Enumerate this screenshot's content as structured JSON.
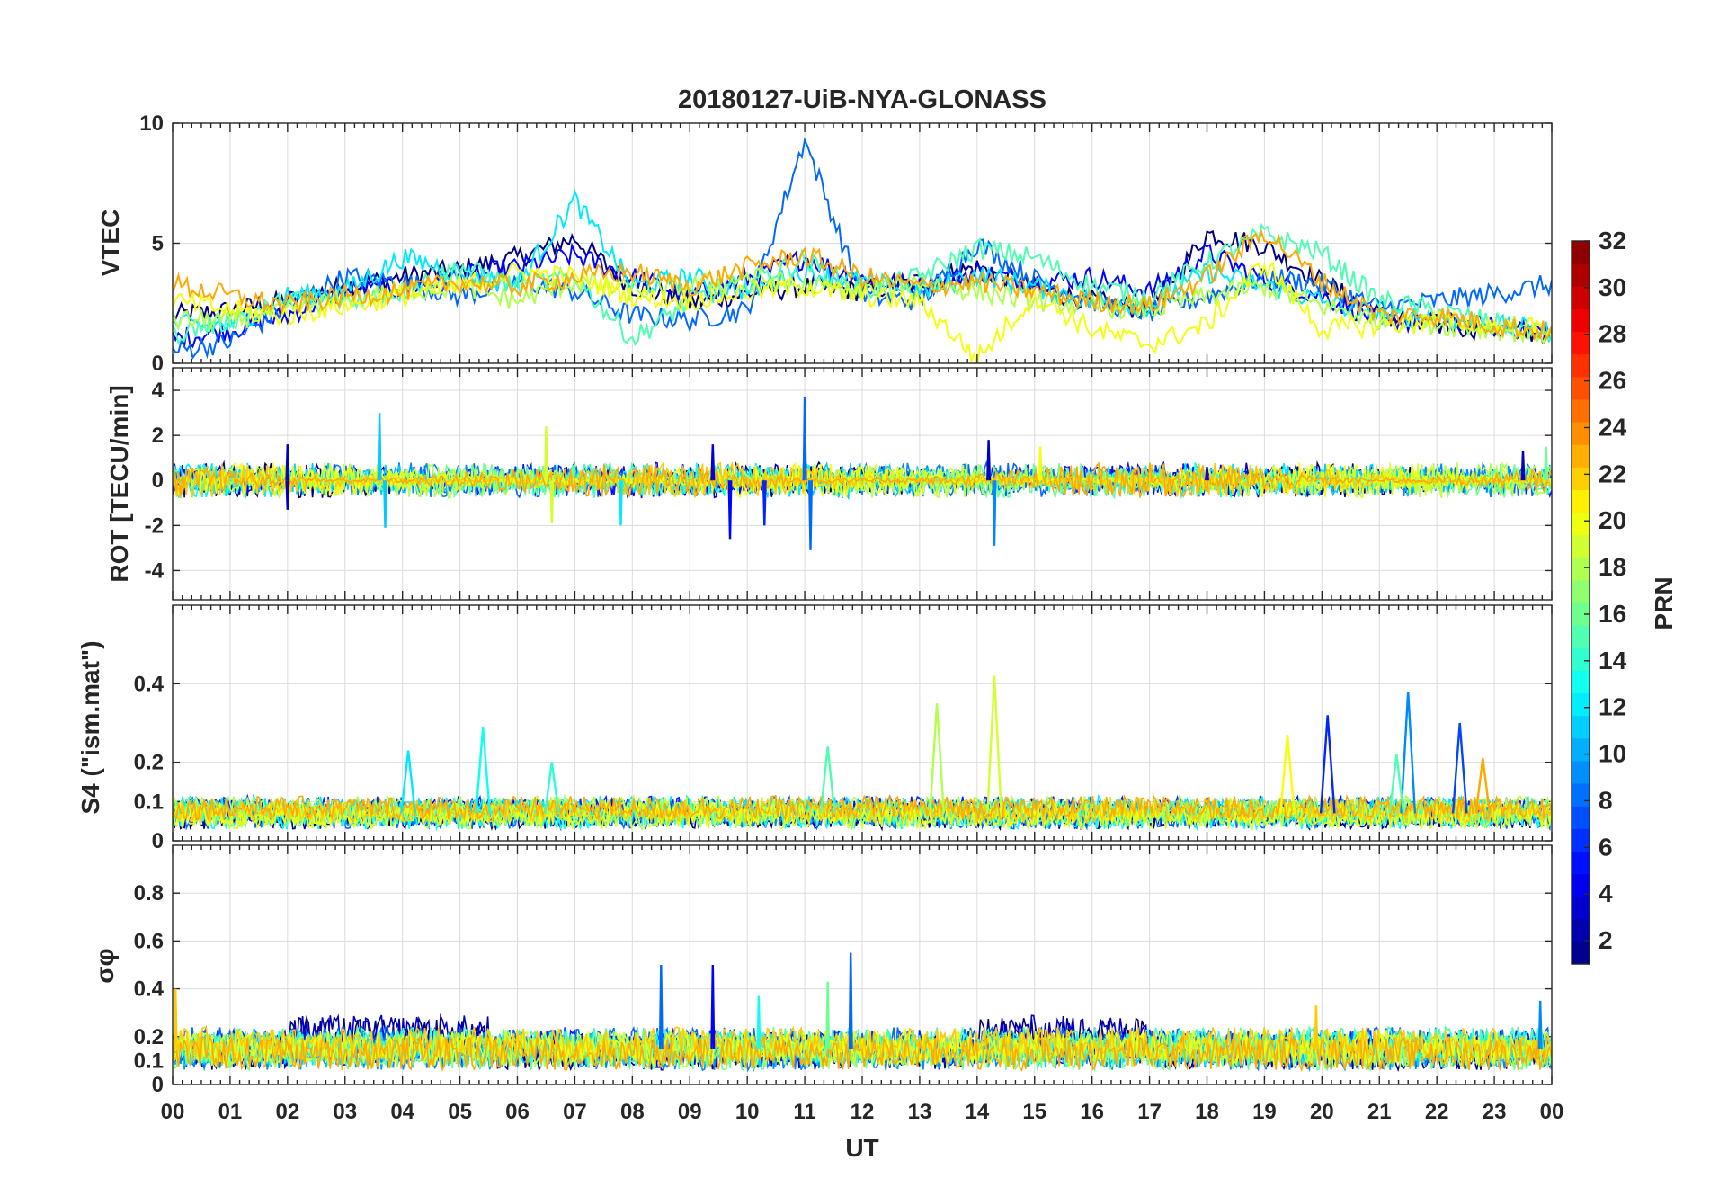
{
  "chart_data": {
    "type": "line",
    "title": "20180127-UiB-NYA-GLONASS",
    "xlabel": "UT",
    "x_tick_labels": [
      "00",
      "01",
      "02",
      "03",
      "04",
      "05",
      "06",
      "07",
      "08",
      "09",
      "10",
      "11",
      "12",
      "13",
      "14",
      "15",
      "16",
      "17",
      "18",
      "19",
      "20",
      "21",
      "22",
      "23",
      "00"
    ],
    "xlim": [
      0,
      24
    ],
    "colorbar": {
      "label": "PRN",
      "range": [
        1,
        32
      ],
      "tick_values": [
        2,
        4,
        6,
        8,
        10,
        12,
        14,
        16,
        18,
        20,
        22,
        24,
        26,
        28,
        30,
        32
      ],
      "tick_labels": [
        "2",
        "4",
        "6",
        "8",
        "10",
        "12",
        "14",
        "16",
        "18",
        "20",
        "22",
        "24",
        "26",
        "28",
        "30",
        "32"
      ]
    },
    "legend": "colorbar right",
    "panels": [
      {
        "key": "vtec",
        "ylabel": "VTEC",
        "ylim": [
          0,
          10
        ],
        "y_ticks": [
          0,
          5,
          10
        ],
        "y_tick_labels": [
          "0",
          "5",
          "10"
        ],
        "series_summary": "Per-PRN VTEC tracks of roughly 1-6 TECU, peaking near 9.3 TECU at about 11 UT",
        "series": [
          {
            "prn": 1,
            "x": [
              0,
              1,
              2,
              3,
              4,
              5,
              6,
              7,
              8,
              9,
              10,
              11,
              12,
              13,
              14,
              15,
              16,
              17,
              18,
              19,
              20,
              21,
              22,
              23,
              24
            ],
            "y": [
              2.0,
              2.2,
              2.6,
              3.2,
              3.6,
              3.9,
              4.4,
              5.2,
              3.2,
              2.5,
              2.9,
              3.2,
              3.0,
              3.4,
              4.0,
              3.1,
              2.6,
              2.2,
              5.4,
              4.9,
              3.4,
              2.0,
              1.6,
              1.4,
              1.2
            ]
          },
          {
            "prn": 5,
            "x": [
              0,
              1,
              2,
              3,
              4,
              5,
              6,
              7,
              8,
              9,
              10,
              11,
              12,
              13,
              14,
              15,
              16,
              17,
              18,
              19,
              20,
              21,
              22,
              23,
              24
            ],
            "y": [
              1.0,
              1.4,
              2.0,
              3.0,
              3.1,
              3.6,
              4.0,
              4.5,
              3.6,
              2.8,
              3.5,
              4.4,
              3.5,
              3.2,
              3.8,
              3.4,
              3.6,
              3.0,
              4.6,
              3.5,
              2.8,
              1.8,
              1.7,
              1.5,
              1.4
            ]
          },
          {
            "prn": 8,
            "x": [
              0,
              1,
              2,
              3,
              4,
              5,
              6,
              7,
              8,
              9,
              10,
              11,
              12,
              13,
              14,
              15,
              16,
              17,
              18,
              19,
              20,
              21,
              22,
              23,
              24
            ],
            "y": [
              0.5,
              0.9,
              2.4,
              3.6,
              3.4,
              2.8,
              3.4,
              3.0,
              2.0,
              1.8,
              2.2,
              9.3,
              2.8,
              2.6,
              5.0,
              3.5,
              2.6,
              2.1,
              2.8,
              3.6,
              3.3,
              2.3,
              2.6,
              2.9,
              3.3
            ]
          },
          {
            "prn": 12,
            "x": [
              0,
              1,
              2,
              3,
              4,
              5,
              6,
              7,
              8,
              9,
              10,
              11,
              12,
              13,
              14,
              15,
              16,
              17,
              18,
              19,
              20,
              21,
              22,
              23,
              24
            ],
            "y": [
              1.6,
              1.6,
              2.8,
              3.0,
              4.4,
              3.8,
              3.3,
              6.8,
              3.2,
              3.6,
              3.0,
              3.8,
              3.4,
              3.0,
              3.7,
              3.2,
              2.6,
              2.4,
              3.8,
              3.2,
              2.6,
              2.0,
              1.9,
              1.6,
              1.3
            ]
          },
          {
            "prn": 15,
            "x": [
              0,
              1,
              2,
              3,
              4,
              5,
              6,
              7,
              8,
              9,
              10,
              11,
              12,
              13,
              14,
              15,
              16,
              17,
              18,
              19,
              20,
              21,
              22,
              23,
              24
            ],
            "y": [
              1.2,
              1.8,
              2.6,
              2.6,
              3.0,
              4.0,
              3.2,
              3.6,
              1.0,
              2.6,
              3.4,
              4.3,
              3.0,
              3.6,
              4.8,
              4.4,
              3.2,
              2.8,
              4.2,
              5.4,
              4.6,
              2.6,
              2.2,
              1.7,
              1.2
            ]
          },
          {
            "prn": 18,
            "x": [
              0,
              1,
              2,
              3,
              4,
              5,
              6,
              7,
              8,
              9,
              10,
              11,
              12,
              13,
              14,
              15,
              16,
              17,
              18,
              19,
              20,
              21,
              22,
              23,
              24
            ],
            "y": [
              1.8,
              1.8,
              2.2,
              2.7,
              3.0,
              3.2,
              2.6,
              3.4,
              3.0,
              3.2,
              3.6,
              3.2,
              3.0,
              3.4,
              3.0,
              2.6,
              2.4,
              2.2,
              2.8,
              3.2,
              2.4,
              1.8,
              1.6,
              1.4,
              1.2
            ]
          },
          {
            "prn": 20,
            "x": [
              0,
              1,
              2,
              3,
              4,
              5,
              6,
              7,
              8,
              9,
              10,
              11,
              12,
              13,
              14,
              15,
              16,
              17,
              18,
              19,
              20,
              21,
              22,
              23,
              24
            ],
            "y": [
              2.6,
              2.2,
              2.0,
              2.4,
              2.8,
              3.2,
              3.8,
              3.6,
              2.8,
              2.6,
              3.0,
              3.2,
              2.8,
              2.6,
              0.2,
              2.8,
              1.4,
              0.8,
              1.6,
              4.2,
              1.4,
              1.6,
              1.8,
              1.6,
              1.4
            ]
          },
          {
            "prn": 23,
            "x": [
              0,
              1,
              2,
              3,
              4,
              5,
              6,
              7,
              8,
              9,
              10,
              11,
              12,
              13,
              14,
              15,
              16,
              17,
              18,
              19,
              20,
              21,
              22,
              23,
              24
            ],
            "y": [
              3.3,
              2.8,
              2.4,
              2.8,
              3.0,
              3.4,
              3.2,
              3.6,
              3.8,
              3.2,
              4.0,
              4.5,
              3.6,
              3.2,
              3.4,
              3.0,
              2.6,
              2.4,
              3.6,
              5.5,
              3.4,
              2.0,
              2.0,
              1.6,
              1.3
            ]
          }
        ]
      },
      {
        "key": "rot",
        "ylabel": "ROT [TECU/min]",
        "ylim": [
          -5.3,
          5
        ],
        "y_ticks": [
          -4,
          -2,
          0,
          2,
          4
        ],
        "y_tick_labels": [
          "-4",
          "-2",
          "0",
          "2",
          "4"
        ],
        "series_summary": "ROT fluctuations around 0, spikes to about +3.7 and -3.1 near 11 UT",
        "baseline": 0,
        "spikes": [
          {
            "prn": 3,
            "x": 2.0,
            "y": 1.6
          },
          {
            "prn": 3,
            "x": 2.0,
            "y": -1.3
          },
          {
            "prn": 11,
            "x": 3.6,
            "y": 3.0
          },
          {
            "prn": 11,
            "x": 3.7,
            "y": -2.1
          },
          {
            "prn": 19,
            "x": 6.5,
            "y": 2.4
          },
          {
            "prn": 19,
            "x": 6.6,
            "y": -1.9
          },
          {
            "prn": 12,
            "x": 7.8,
            "y": -2.0
          },
          {
            "prn": 4,
            "x": 9.4,
            "y": 1.6
          },
          {
            "prn": 5,
            "x": 9.7,
            "y": -2.6
          },
          {
            "prn": 8,
            "x": 11.0,
            "y": 3.7
          },
          {
            "prn": 8,
            "x": 11.1,
            "y": -3.1
          },
          {
            "prn": 6,
            "x": 10.3,
            "y": -2.0
          },
          {
            "prn": 9,
            "x": 14.3,
            "y": -2.9
          },
          {
            "prn": 20,
            "x": 15.1,
            "y": 1.5
          },
          {
            "prn": 3,
            "x": 14.2,
            "y": 1.8
          },
          {
            "prn": 5,
            "x": 18.0,
            "y": 0.6
          },
          {
            "prn": 3,
            "x": 23.5,
            "y": 1.3
          },
          {
            "prn": 16,
            "x": 23.9,
            "y": 1.5
          }
        ]
      },
      {
        "key": "s4",
        "ylabel": "S4 (\"ism.mat\")",
        "ylim": [
          0,
          0.6
        ],
        "y_ticks": [
          0,
          0.1,
          0.2,
          0.4
        ],
        "y_tick_labels": [
          "0",
          "0.1",
          "0.2",
          "0.4"
        ],
        "series_summary": "S4 background about 0.05-0.1 with peaks up to about 0.42 near 14.3 UT",
        "baseline": 0.07,
        "peaks": [
          {
            "prn": 12,
            "x": 4.1,
            "y": 0.23
          },
          {
            "prn": 13,
            "x": 5.4,
            "y": 0.29
          },
          {
            "prn": 14,
            "x": 6.6,
            "y": 0.2
          },
          {
            "prn": 15,
            "x": 11.4,
            "y": 0.24
          },
          {
            "prn": 18,
            "x": 13.3,
            "y": 0.35
          },
          {
            "prn": 19,
            "x": 14.3,
            "y": 0.42
          },
          {
            "prn": 20,
            "x": 19.4,
            "y": 0.27
          },
          {
            "prn": 6,
            "x": 20.1,
            "y": 0.32
          },
          {
            "prn": 9,
            "x": 21.5,
            "y": 0.38
          },
          {
            "prn": 7,
            "x": 22.4,
            "y": 0.3
          },
          {
            "prn": 23,
            "x": 22.8,
            "y": 0.21
          },
          {
            "prn": 15,
            "x": 21.3,
            "y": 0.22
          }
        ]
      },
      {
        "key": "sigma_phi",
        "ylabel": "σφ",
        "ylim": [
          0,
          1
        ],
        "y_ticks": [
          0,
          0.1,
          0.2,
          0.4,
          0.6,
          0.8
        ],
        "y_tick_labels": [
          "0",
          "0.1",
          "0.2",
          "0.4",
          "0.6",
          "0.8"
        ],
        "series_summary": "Sigma phi baseline about 0.12-0.2 with spikes up to about 0.55 near 11.8 UT",
        "baseline": 0.15,
        "spikes": [
          {
            "prn": 22,
            "x": 0.05,
            "y": 0.4
          },
          {
            "prn": 8,
            "x": 8.5,
            "y": 0.5
          },
          {
            "prn": 5,
            "x": 9.4,
            "y": 0.5
          },
          {
            "prn": 13,
            "x": 10.2,
            "y": 0.37
          },
          {
            "prn": 16,
            "x": 11.4,
            "y": 0.43
          },
          {
            "prn": 8,
            "x": 11.8,
            "y": 0.55
          },
          {
            "prn": 22,
            "x": 19.9,
            "y": 0.33
          },
          {
            "prn": 9,
            "x": 23.8,
            "y": 0.35
          }
        ]
      }
    ]
  }
}
